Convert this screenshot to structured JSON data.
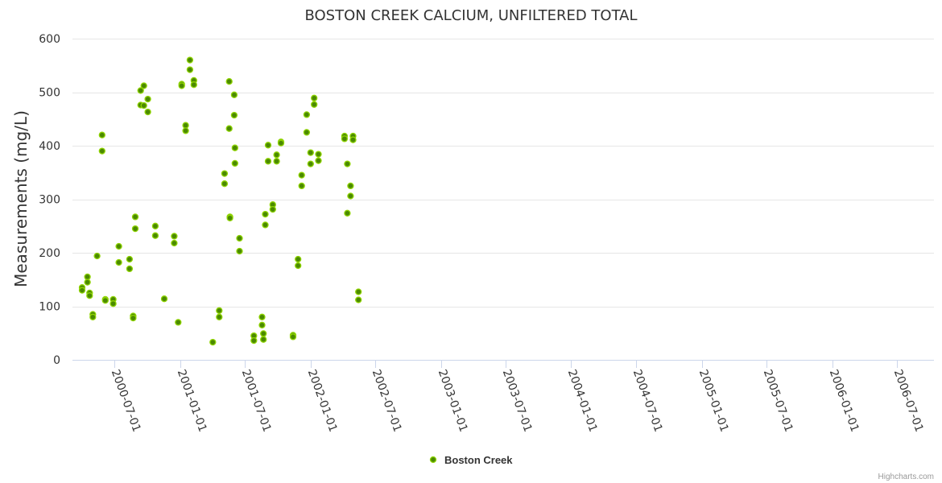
{
  "chart_data": {
    "type": "scatter",
    "title": "BOSTON CREEK CALCIUM, UNFILTERED TOTAL",
    "xlabel": "",
    "ylabel": "Measurements (mg/L)",
    "ylim": [
      0,
      600
    ],
    "yticks": [
      0,
      100,
      200,
      300,
      400,
      500,
      600
    ],
    "xlim": [
      "2000-03-05",
      "2006-10-13"
    ],
    "xticks": [
      "2000-07-01",
      "2001-01-01",
      "2001-07-01",
      "2002-01-01",
      "2002-07-01",
      "2003-01-01",
      "2003-07-01",
      "2004-01-01",
      "2004-07-01",
      "2005-01-01",
      "2005-07-01",
      "2006-01-01",
      "2006-07-01"
    ],
    "grid": true,
    "legend_position": "bottom-center",
    "series": [
      {
        "name": "Boston Creek",
        "color": "#7cb5ec",
        "marker_fill": "#4b8a00",
        "marker_stroke": "#8fd400",
        "points": [
          {
            "x": "2000-04-01",
            "y": 135
          },
          {
            "x": "2000-04-01",
            "y": 130
          },
          {
            "x": "2000-04-16",
            "y": 155
          },
          {
            "x": "2000-04-16",
            "y": 145
          },
          {
            "x": "2000-04-22",
            "y": 125
          },
          {
            "x": "2000-04-22",
            "y": 120
          },
          {
            "x": "2000-05-01",
            "y": 85
          },
          {
            "x": "2000-05-01",
            "y": 80
          },
          {
            "x": "2000-05-13",
            "y": 194
          },
          {
            "x": "2000-05-27",
            "y": 420
          },
          {
            "x": "2000-05-27",
            "y": 390
          },
          {
            "x": "2000-06-05",
            "y": 113
          },
          {
            "x": "2000-06-05",
            "y": 111
          },
          {
            "x": "2000-06-27",
            "y": 113
          },
          {
            "x": "2000-06-27",
            "y": 105
          },
          {
            "x": "2000-07-13",
            "y": 212
          },
          {
            "x": "2000-07-13",
            "y": 182
          },
          {
            "x": "2000-08-12",
            "y": 188
          },
          {
            "x": "2000-08-12",
            "y": 170
          },
          {
            "x": "2000-08-22",
            "y": 82
          },
          {
            "x": "2000-08-22",
            "y": 78
          },
          {
            "x": "2000-08-28",
            "y": 267
          },
          {
            "x": "2000-08-28",
            "y": 245
          },
          {
            "x": "2000-09-12",
            "y": 503
          },
          {
            "x": "2000-09-12",
            "y": 476
          },
          {
            "x": "2000-09-21",
            "y": 512
          },
          {
            "x": "2000-09-21",
            "y": 475
          },
          {
            "x": "2000-10-02",
            "y": 487
          },
          {
            "x": "2000-10-02",
            "y": 463
          },
          {
            "x": "2000-10-23",
            "y": 250
          },
          {
            "x": "2000-10-23",
            "y": 232
          },
          {
            "x": "2000-11-17",
            "y": 114
          },
          {
            "x": "2000-12-15",
            "y": 231
          },
          {
            "x": "2000-12-15",
            "y": 218
          },
          {
            "x": "2000-12-26",
            "y": 70
          },
          {
            "x": "2001-01-05",
            "y": 515
          },
          {
            "x": "2001-01-05",
            "y": 512
          },
          {
            "x": "2001-01-16",
            "y": 438
          },
          {
            "x": "2001-01-16",
            "y": 428
          },
          {
            "x": "2001-01-28",
            "y": 560
          },
          {
            "x": "2001-01-28",
            "y": 542
          },
          {
            "x": "2001-02-08",
            "y": 522
          },
          {
            "x": "2001-02-08",
            "y": 514
          },
          {
            "x": "2001-04-02",
            "y": 33
          },
          {
            "x": "2001-04-20",
            "y": 92
          },
          {
            "x": "2001-04-20",
            "y": 80
          },
          {
            "x": "2001-05-05",
            "y": 348
          },
          {
            "x": "2001-05-05",
            "y": 329
          },
          {
            "x": "2001-05-18",
            "y": 520
          },
          {
            "x": "2001-05-18",
            "y": 432
          },
          {
            "x": "2001-05-20",
            "y": 267
          },
          {
            "x": "2001-05-20",
            "y": 265
          },
          {
            "x": "2001-06-01",
            "y": 495
          },
          {
            "x": "2001-06-01",
            "y": 457
          },
          {
            "x": "2001-06-03",
            "y": 396
          },
          {
            "x": "2001-06-03",
            "y": 367
          },
          {
            "x": "2001-06-16",
            "y": 227
          },
          {
            "x": "2001-06-16",
            "y": 203
          },
          {
            "x": "2001-07-26",
            "y": 45
          },
          {
            "x": "2001-07-26",
            "y": 36
          },
          {
            "x": "2001-08-18",
            "y": 80
          },
          {
            "x": "2001-08-18",
            "y": 65
          },
          {
            "x": "2001-08-22",
            "y": 49
          },
          {
            "x": "2001-08-22",
            "y": 38
          },
          {
            "x": "2001-08-27",
            "y": 272
          },
          {
            "x": "2001-08-27",
            "y": 252
          },
          {
            "x": "2001-09-04",
            "y": 401
          },
          {
            "x": "2001-09-04",
            "y": 371
          },
          {
            "x": "2001-09-17",
            "y": 290
          },
          {
            "x": "2001-09-17",
            "y": 281
          },
          {
            "x": "2001-09-28",
            "y": 383
          },
          {
            "x": "2001-09-28",
            "y": 371
          },
          {
            "x": "2001-10-10",
            "y": 407
          },
          {
            "x": "2001-10-10",
            "y": 405
          },
          {
            "x": "2001-11-13",
            "y": 46
          },
          {
            "x": "2001-11-13",
            "y": 43
          },
          {
            "x": "2001-11-27",
            "y": 188
          },
          {
            "x": "2001-11-27",
            "y": 176
          },
          {
            "x": "2001-12-07",
            "y": 345
          },
          {
            "x": "2001-12-07",
            "y": 325
          },
          {
            "x": "2001-12-21",
            "y": 458
          },
          {
            "x": "2001-12-21",
            "y": 425
          },
          {
            "x": "2002-01-01",
            "y": 387
          },
          {
            "x": "2002-01-01",
            "y": 366
          },
          {
            "x": "2002-01-11",
            "y": 489
          },
          {
            "x": "2002-01-11",
            "y": 477
          },
          {
            "x": "2002-01-23",
            "y": 384
          },
          {
            "x": "2002-01-23",
            "y": 372
          },
          {
            "x": "2002-04-06",
            "y": 418
          },
          {
            "x": "2002-04-06",
            "y": 413
          },
          {
            "x": "2002-04-14",
            "y": 366
          },
          {
            "x": "2002-04-14",
            "y": 274
          },
          {
            "x": "2002-04-23",
            "y": 325
          },
          {
            "x": "2002-04-23",
            "y": 306
          },
          {
            "x": "2002-04-30",
            "y": 418
          },
          {
            "x": "2002-04-30",
            "y": 411
          },
          {
            "x": "2002-05-15",
            "y": 127
          },
          {
            "x": "2002-05-15",
            "y": 112
          }
        ]
      }
    ]
  },
  "credits": "Highcharts.com"
}
